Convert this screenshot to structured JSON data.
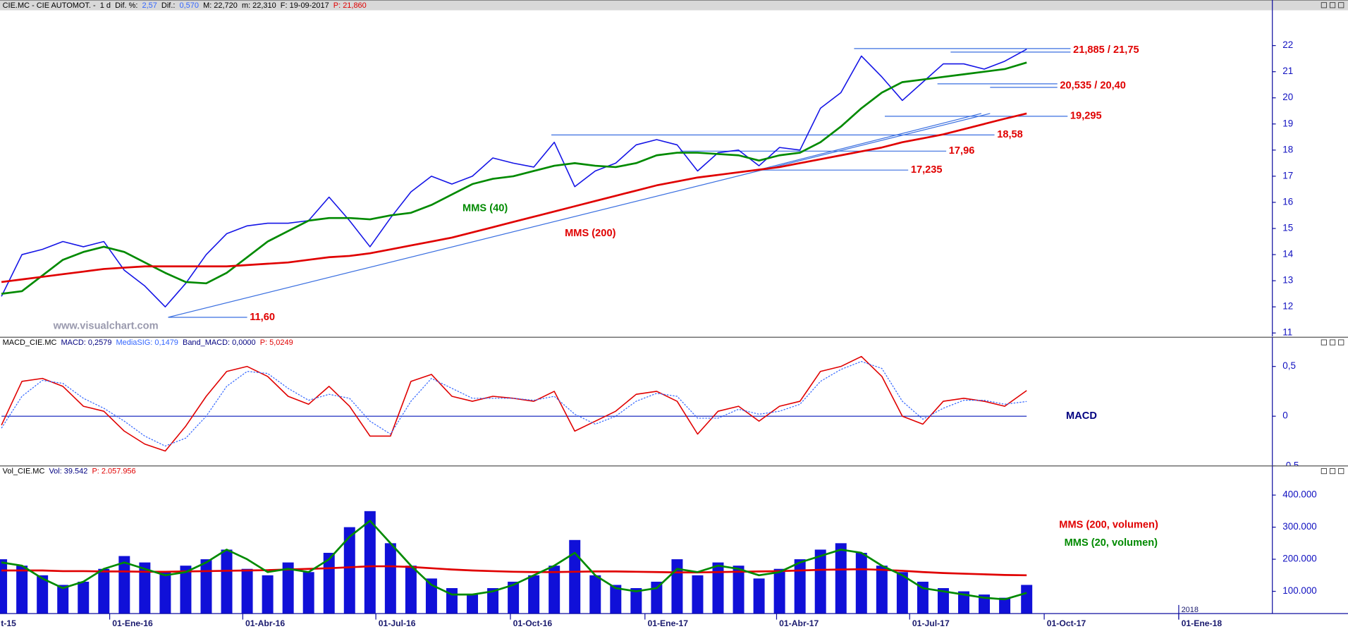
{
  "chart_data": [
    {
      "type": "line",
      "header": [
        {
          "text": "CIE.MC - CIE AUTOMOT. -",
          "color": "#000000"
        },
        {
          "text": "1 d",
          "color": "#000000"
        },
        {
          "text": "Dif. %:",
          "color": "#000000"
        },
        {
          "text": "2,57",
          "color": "#3366ff"
        },
        {
          "text": "Dif.:",
          "color": "#000000"
        },
        {
          "text": "0,570",
          "color": "#3366ff"
        },
        {
          "text": "M: 22,720",
          "color": "#000000"
        },
        {
          "text": "m: 22,310",
          "color": "#000000"
        },
        {
          "text": "F: 19-09-2017",
          "color": "#000000"
        },
        {
          "text": "P: 21,860",
          "color": "#e00000"
        }
      ],
      "xlim": [
        "2015-10-18",
        "2018-03-06"
      ],
      "x": [
        "2015-10-19",
        "2015-11-02",
        "2015-11-16",
        "2015-11-30",
        "2015-12-14",
        "2015-12-28",
        "2016-01-11",
        "2016-01-25",
        "2016-02-08",
        "2016-02-22",
        "2016-03-07",
        "2016-03-21",
        "2016-04-04",
        "2016-04-18",
        "2016-05-02",
        "2016-05-16",
        "2016-05-30",
        "2016-06-13",
        "2016-06-27",
        "2016-07-11",
        "2016-07-25",
        "2016-08-08",
        "2016-08-22",
        "2016-09-05",
        "2016-09-19",
        "2016-10-03",
        "2016-10-17",
        "2016-10-31",
        "2016-11-14",
        "2016-11-28",
        "2016-12-12",
        "2016-12-26",
        "2017-01-09",
        "2017-01-23",
        "2017-02-06",
        "2017-02-20",
        "2017-03-06",
        "2017-03-20",
        "2017-04-03",
        "2017-04-17",
        "2017-05-01",
        "2017-05-15",
        "2017-05-29",
        "2017-06-12",
        "2017-06-26",
        "2017-07-10",
        "2017-07-24",
        "2017-08-07",
        "2017-08-21",
        "2017-09-04",
        "2017-09-19"
      ],
      "series": [
        {
          "color": "#1414e6",
          "values": [
            12.4,
            14.0,
            14.2,
            14.5,
            14.3,
            14.5,
            13.4,
            12.8,
            12.0,
            12.9,
            14.0,
            14.8,
            15.1,
            15.2,
            15.2,
            15.3,
            16.2,
            15.3,
            14.3,
            15.4,
            16.4,
            17.0,
            16.7,
            17.0,
            17.7,
            17.5,
            17.35,
            18.3,
            16.6,
            17.2,
            17.5,
            18.2,
            18.4,
            18.2,
            17.2,
            17.9,
            18.0,
            17.4,
            18.1,
            18.0,
            19.6,
            20.2,
            21.6,
            20.8,
            19.9,
            20.6,
            21.3,
            21.3,
            21.1,
            21.4,
            21.86
          ]
        },
        {
          "name": "MMS (40)",
          "color": "#008a00",
          "values": [
            12.5,
            12.6,
            13.2,
            13.8,
            14.1,
            14.3,
            14.1,
            13.7,
            13.3,
            12.95,
            12.9,
            13.3,
            13.9,
            14.5,
            14.9,
            15.3,
            15.4,
            15.4,
            15.35,
            15.5,
            15.6,
            15.9,
            16.3,
            16.7,
            16.9,
            17.0,
            17.2,
            17.4,
            17.5,
            17.4,
            17.35,
            17.5,
            17.8,
            17.9,
            17.9,
            17.85,
            17.8,
            17.6,
            17.8,
            17.9,
            18.3,
            18.9,
            19.6,
            20.2,
            20.6,
            20.7,
            20.8,
            20.9,
            21.0,
            21.1,
            21.35
          ]
        },
        {
          "name": "MMS (200)",
          "color": "#e00000",
          "values": [
            12.95,
            13.05,
            13.15,
            13.25,
            13.35,
            13.45,
            13.5,
            13.55,
            13.55,
            13.55,
            13.55,
            13.55,
            13.6,
            13.65,
            13.7,
            13.8,
            13.9,
            13.95,
            14.05,
            14.2,
            14.35,
            14.5,
            14.65,
            14.85,
            15.05,
            15.25,
            15.45,
            15.65,
            15.85,
            16.05,
            16.25,
            16.45,
            16.65,
            16.8,
            16.95,
            17.05,
            17.15,
            17.25,
            17.35,
            17.5,
            17.65,
            17.8,
            17.95,
            18.1,
            18.3,
            18.45,
            18.6,
            18.8,
            19.0,
            19.2,
            19.4
          ]
        }
      ],
      "ylim": [
        10.87,
        23.35
      ],
      "yticks": [
        11,
        12,
        13,
        14,
        15,
        16,
        17,
        18,
        19,
        20,
        21,
        22
      ],
      "level_color": "#3a6fe0",
      "label_color": "#e00000",
      "levels": [
        {
          "label": "21,885 / 21,75",
          "lines": [
            {
              "value": 21.885,
              "start": "2017-05-24",
              "end": "2017-10-19"
            },
            {
              "value": 21.75,
              "start": "2017-07-29",
              "end": "2017-10-19"
            }
          ]
        },
        {
          "label": "20,535 / 20,40",
          "lines": [
            {
              "value": 20.535,
              "start": "2017-07-20",
              "end": "2017-10-10"
            },
            {
              "value": 20.4,
              "start": "2017-08-25",
              "end": "2017-10-10"
            }
          ]
        },
        {
          "label": "19,295",
          "lines": [
            {
              "value": 19.295,
              "start": "2017-06-14",
              "end": "2017-10-17"
            }
          ]
        },
        {
          "label": "18,58",
          "lines": [
            {
              "value": 18.58,
              "start": "2016-10-29",
              "end": "2017-08-28"
            }
          ]
        },
        {
          "label": "17,96",
          "lines": [
            {
              "value": 17.96,
              "start": "2017-01-25",
              "end": "2017-07-26"
            }
          ]
        },
        {
          "label": "17,235",
          "lines": [
            {
              "value": 17.235,
              "start": "2017-03-19",
              "end": "2017-06-30"
            }
          ]
        },
        {
          "label": "11,60",
          "lines": [
            {
              "value": 11.6,
              "start": "2016-02-10",
              "end": "2016-04-04"
            }
          ]
        }
      ],
      "trendlines": [
        {
          "x": [
            "2016-02-10",
            "2017-08-25"
          ],
          "values": [
            11.6,
            19.4
          ]
        },
        {
          "x": [
            "2017-03-19",
            "2017-08-19"
          ],
          "values": [
            17.235,
            19.4
          ]
        }
      ],
      "watermark": "www.visualchart.com"
    },
    {
      "type": "line",
      "header": [
        {
          "text": "MACD_CIE.MC",
          "color": "#000000"
        },
        {
          "text": "MACD: 0,2579",
          "color": "#000080"
        },
        {
          "text": "MediaSIG: 0,1479",
          "color": "#3366ff"
        },
        {
          "text": "Band_MACD: 0,0000",
          "color": "#000080"
        },
        {
          "text": "P: 5,0249",
          "color": "#e00000"
        }
      ],
      "label": "MACD",
      "label_color": "#000080",
      "xlim": [
        "2015-10-18",
        "2018-03-06"
      ],
      "x": [
        "2015-10-19",
        "2015-11-02",
        "2015-11-16",
        "2015-11-30",
        "2015-12-14",
        "2015-12-28",
        "2016-01-11",
        "2016-01-25",
        "2016-02-08",
        "2016-02-22",
        "2016-03-07",
        "2016-03-21",
        "2016-04-04",
        "2016-04-18",
        "2016-05-02",
        "2016-05-16",
        "2016-05-30",
        "2016-06-13",
        "2016-06-27",
        "2016-07-11",
        "2016-07-25",
        "2016-08-08",
        "2016-08-22",
        "2016-09-05",
        "2016-09-19",
        "2016-10-03",
        "2016-10-17",
        "2016-10-31",
        "2016-11-14",
        "2016-11-28",
        "2016-12-12",
        "2016-12-26",
        "2017-01-09",
        "2017-01-23",
        "2017-02-06",
        "2017-02-20",
        "2017-03-06",
        "2017-03-20",
        "2017-04-03",
        "2017-04-17",
        "2017-05-01",
        "2017-05-15",
        "2017-05-29",
        "2017-06-12",
        "2017-06-26",
        "2017-07-10",
        "2017-07-24",
        "2017-08-07",
        "2017-08-21",
        "2017-09-04",
        "2017-09-19"
      ],
      "series": [
        {
          "color": "#e00000",
          "values": [
            -0.09,
            0.35,
            0.38,
            0.3,
            0.1,
            0.05,
            -0.15,
            -0.28,
            -0.35,
            -0.1,
            0.2,
            0.45,
            0.5,
            0.4,
            0.2,
            0.12,
            0.3,
            0.1,
            -0.2,
            -0.2,
            0.35,
            0.42,
            0.2,
            0.15,
            0.2,
            0.18,
            0.15,
            0.25,
            -0.15,
            -0.05,
            0.05,
            0.22,
            0.25,
            0.15,
            -0.18,
            0.05,
            0.1,
            -0.05,
            0.1,
            0.15,
            0.45,
            0.5,
            0.6,
            0.4,
            0.0,
            -0.08,
            0.15,
            0.18,
            0.15,
            0.1,
            0.2579
          ]
        },
        {
          "color": "#3366ff",
          "dashed": true,
          "values": [
            -0.12,
            0.2,
            0.36,
            0.33,
            0.18,
            0.08,
            -0.05,
            -0.2,
            -0.3,
            -0.22,
            0.0,
            0.3,
            0.45,
            0.43,
            0.28,
            0.16,
            0.22,
            0.18,
            -0.05,
            -0.18,
            0.15,
            0.38,
            0.28,
            0.18,
            0.18,
            0.18,
            0.16,
            0.2,
            0.02,
            -0.08,
            0.0,
            0.15,
            0.23,
            0.2,
            -0.02,
            -0.02,
            0.07,
            0.02,
            0.05,
            0.12,
            0.35,
            0.47,
            0.55,
            0.48,
            0.15,
            -0.03,
            0.08,
            0.16,
            0.16,
            0.12,
            0.1479
          ]
        }
      ],
      "ylim": [
        -0.5,
        0.69
      ],
      "yticks": [
        {
          "value": 0.5,
          "label": "0,5"
        },
        0,
        {
          "value": -0.5,
          "label": "-0,5"
        }
      ],
      "zero_line": true,
      "zero_color": "#2030c0"
    },
    {
      "type": "bar",
      "header": [
        {
          "text": "Vol_CIE.MC",
          "color": "#000000"
        },
        {
          "text": "Vol: 39.542",
          "color": "#000080"
        },
        {
          "text": "P: 2.057.956",
          "color": "#e00000"
        }
      ],
      "xlim": [
        "2015-10-18",
        "2018-03-06"
      ],
      "x": [
        "2015-10-19",
        "2015-11-02",
        "2015-11-16",
        "2015-11-30",
        "2015-12-14",
        "2015-12-28",
        "2016-01-11",
        "2016-01-25",
        "2016-02-08",
        "2016-02-22",
        "2016-03-07",
        "2016-03-21",
        "2016-04-04",
        "2016-04-18",
        "2016-05-02",
        "2016-05-16",
        "2016-05-30",
        "2016-06-13",
        "2016-06-27",
        "2016-07-11",
        "2016-07-25",
        "2016-08-08",
        "2016-08-22",
        "2016-09-05",
        "2016-09-19",
        "2016-10-03",
        "2016-10-17",
        "2016-10-31",
        "2016-11-14",
        "2016-11-28",
        "2016-12-12",
        "2016-12-26",
        "2017-01-09",
        "2017-01-23",
        "2017-02-06",
        "2017-02-20",
        "2017-03-06",
        "2017-03-20",
        "2017-04-03",
        "2017-04-17",
        "2017-05-01",
        "2017-05-15",
        "2017-05-29",
        "2017-06-12",
        "2017-06-26",
        "2017-07-10",
        "2017-07-24",
        "2017-08-07",
        "2017-08-21",
        "2017-09-04",
        "2017-09-19"
      ],
      "series": [
        {
          "type": "bar",
          "color": "#1010d8",
          "values": [
            200000,
            180000,
            150000,
            120000,
            130000,
            170000,
            210000,
            190000,
            160000,
            180000,
            200000,
            230000,
            170000,
            150000,
            190000,
            160000,
            220000,
            300000,
            350000,
            250000,
            180000,
            140000,
            110000,
            90000,
            110000,
            130000,
            150000,
            180000,
            260000,
            150000,
            120000,
            110000,
            130000,
            200000,
            150000,
            190000,
            180000,
            140000,
            170000,
            200000,
            230000,
            250000,
            220000,
            180000,
            160000,
            130000,
            110000,
            100000,
            90000,
            80000,
            120000
          ]
        },
        {
          "name": "MMS (200, volumen)",
          "color": "#e00000",
          "values": [
            165000,
            165000,
            165000,
            163000,
            163000,
            162000,
            162000,
            161000,
            161000,
            162000,
            163000,
            164000,
            165000,
            166000,
            168000,
            170000,
            172000,
            175000,
            178000,
            178000,
            176000,
            172000,
            168000,
            165000,
            163000,
            161000,
            160000,
            160000,
            161000,
            162000,
            162000,
            161000,
            160000,
            159000,
            159000,
            160000,
            161000,
            162000,
            163000,
            165000,
            167000,
            168000,
            169000,
            167000,
            164000,
            160000,
            157000,
            155000,
            153000,
            151000,
            150000
          ]
        },
        {
          "name": "MMS (20, volumen)",
          "color": "#008a00",
          "values": [
            190000,
            180000,
            140000,
            110000,
            130000,
            170000,
            190000,
            170000,
            150000,
            160000,
            190000,
            230000,
            200000,
            160000,
            170000,
            160000,
            200000,
            270000,
            320000,
            250000,
            180000,
            120000,
            90000,
            90000,
            100000,
            120000,
            150000,
            180000,
            220000,
            150000,
            110000,
            100000,
            110000,
            170000,
            160000,
            180000,
            170000,
            150000,
            160000,
            190000,
            210000,
            230000,
            220000,
            180000,
            150000,
            110000,
            100000,
            90000,
            80000,
            75000,
            95000
          ]
        }
      ],
      "ylim": [
        30700,
        458700
      ],
      "yticks": [
        {
          "value": 100000,
          "label": "100.000"
        },
        {
          "value": 200000,
          "label": "200.000"
        },
        {
          "value": 300000,
          "label": "300.000"
        },
        {
          "value": 400000,
          "label": "400.000"
        }
      ],
      "xticks": [
        {
          "value": "2015-10-01",
          "label": "t-15"
        },
        {
          "value": "2016-01-01",
          "label": "01-Ene-16"
        },
        {
          "value": "2016-04-01",
          "label": "01-Abr-16"
        },
        {
          "value": "2016-07-01",
          "label": "01-Jul-16"
        },
        {
          "value": "2016-10-01",
          "label": "01-Oct-16"
        },
        {
          "value": "2017-01-01",
          "label": "01-Ene-17"
        },
        {
          "value": "2017-04-01",
          "label": "01-Abr-17"
        },
        {
          "value": "2017-07-01",
          "label": "01-Jul-17"
        },
        {
          "value": "2017-10-01",
          "label": "01-Oct-17"
        },
        {
          "value": "2018-01-01",
          "label": "01-Ene-18"
        }
      ],
      "year_markers": [
        {
          "value": "2018-01-01",
          "label": "2018"
        }
      ]
    }
  ]
}
